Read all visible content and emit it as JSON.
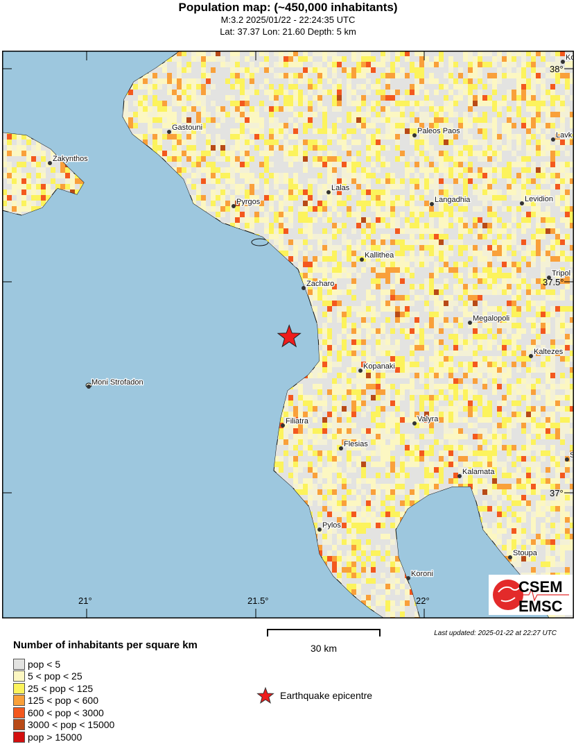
{
  "header": {
    "title": "Population map: (~450,000 inhabitants)",
    "event": "M:3.2 2025/01/22 - 22:24:35 UTC",
    "location": "Lat: 37.37 Lon: 21.60 Depth: 5 km"
  },
  "map": {
    "sea_color": "#9dc7de",
    "lon_ticks": [
      "21°",
      "21.5°",
      "22°"
    ],
    "lat_ticks": [
      "38°",
      "37.5°",
      "37°"
    ],
    "cities": [
      "Gastouni",
      "Zakynthos",
      "Pyrgos",
      "Lalas",
      "Paleos Paos",
      "Langadhia",
      "Levidion",
      "Kallithea",
      "Zacharo",
      "Megalopoli",
      "Kaltezes",
      "Kopanaki",
      "Moni Strofadon",
      "Filiatra",
      "Valyra",
      "Flesias",
      "Kalamata",
      "Pylos",
      "Stoupa",
      "Koroni",
      "Tripol",
      "Lavk",
      "Ko",
      "S"
    ],
    "epicentre": {
      "lat": 37.37,
      "lon": 21.6,
      "color": "#ee1c1c"
    },
    "logo": {
      "line1": "CSEM",
      "line2": "EMSC"
    }
  },
  "legend": {
    "title": "Number of inhabitants per square km",
    "classes": [
      {
        "label": "pop < 5",
        "color": "#e3e3e1"
      },
      {
        "label": "5 < pop < 25",
        "color": "#fcf7c2"
      },
      {
        "label": "25 < pop < 125",
        "color": "#fcf35c"
      },
      {
        "label": "125 < pop < 600",
        "color": "#f9a03a"
      },
      {
        "label": "600 < pop < 3000",
        "color": "#f3581e"
      },
      {
        "label": "3000 < pop < 15000",
        "color": "#b84a17"
      },
      {
        "label": "pop > 15000",
        "color": "#d30f0f"
      }
    ],
    "epicentre_label": "Earthquake epicentre"
  },
  "scale": {
    "label": "30 km"
  },
  "updated": "Last updated: 2025-01-22 at 22:27 UTC"
}
